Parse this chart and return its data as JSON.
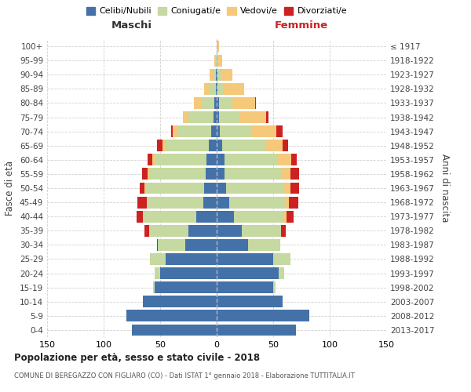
{
  "age_groups": [
    "0-4",
    "5-9",
    "10-14",
    "15-19",
    "20-24",
    "25-29",
    "30-34",
    "35-39",
    "40-44",
    "45-49",
    "50-54",
    "55-59",
    "60-64",
    "65-69",
    "70-74",
    "75-79",
    "80-84",
    "85-89",
    "90-94",
    "95-99",
    "100+"
  ],
  "birth_years": [
    "2013-2017",
    "2008-2012",
    "2003-2007",
    "1998-2002",
    "1993-1997",
    "1988-1992",
    "1983-1987",
    "1978-1982",
    "1973-1977",
    "1968-1972",
    "1963-1967",
    "1958-1962",
    "1953-1957",
    "1948-1952",
    "1943-1947",
    "1938-1942",
    "1933-1937",
    "1928-1932",
    "1923-1927",
    "1918-1922",
    "≤ 1917"
  ],
  "colors": {
    "celibi": "#4472a8",
    "coniugati": "#c5d9a0",
    "vedovi": "#f5c87a",
    "divorziati": "#cc2222"
  },
  "male": {
    "celibi": [
      75,
      80,
      65,
      55,
      50,
      45,
      28,
      25,
      18,
      12,
      11,
      10,
      9,
      7,
      5,
      3,
      2,
      1,
      1,
      0,
      0
    ],
    "coniugati": [
      0,
      0,
      0,
      1,
      5,
      14,
      24,
      35,
      47,
      50,
      52,
      50,
      46,
      38,
      30,
      22,
      12,
      5,
      2,
      1,
      0
    ],
    "vedovi": [
      0,
      0,
      0,
      0,
      0,
      0,
      0,
      0,
      0,
      0,
      1,
      1,
      2,
      3,
      4,
      5,
      6,
      5,
      3,
      1,
      0
    ],
    "divorziati": [
      0,
      0,
      0,
      0,
      0,
      0,
      1,
      4,
      6,
      8,
      4,
      5,
      4,
      5,
      1,
      0,
      0,
      0,
      0,
      0,
      0
    ]
  },
  "female": {
    "celibi": [
      70,
      82,
      58,
      50,
      55,
      50,
      28,
      22,
      15,
      11,
      8,
      7,
      7,
      5,
      3,
      2,
      2,
      1,
      1,
      0,
      0
    ],
    "coniugati": [
      0,
      0,
      0,
      2,
      5,
      15,
      28,
      35,
      45,
      50,
      52,
      50,
      47,
      38,
      28,
      18,
      12,
      5,
      3,
      1,
      0
    ],
    "vedovi": [
      0,
      0,
      0,
      0,
      0,
      0,
      0,
      0,
      2,
      3,
      5,
      8,
      12,
      15,
      22,
      24,
      20,
      18,
      10,
      4,
      2
    ],
    "divorziati": [
      0,
      0,
      0,
      0,
      0,
      0,
      0,
      4,
      6,
      8,
      8,
      8,
      5,
      5,
      5,
      2,
      1,
      0,
      0,
      0,
      0
    ]
  },
  "xlim": 150,
  "title": "Popolazione per età, sesso e stato civile - 2018",
  "subtitle": "COMUNE DI BEREGAZZO CON FIGLIARO (CO) - Dati ISTAT 1° gennaio 2018 - Elaborazione TUTTITALIA.IT",
  "ylabel": "Fasce di età",
  "ylabel_right": "Anni di nascita",
  "xlabel_left": "Maschi",
  "xlabel_right": "Femmine",
  "legend_labels": [
    "Celibi/Nubili",
    "Coniugati/e",
    "Vedovi/e",
    "Divorziati/e"
  ],
  "background_color": "#ffffff",
  "grid_color": "#cccccc"
}
